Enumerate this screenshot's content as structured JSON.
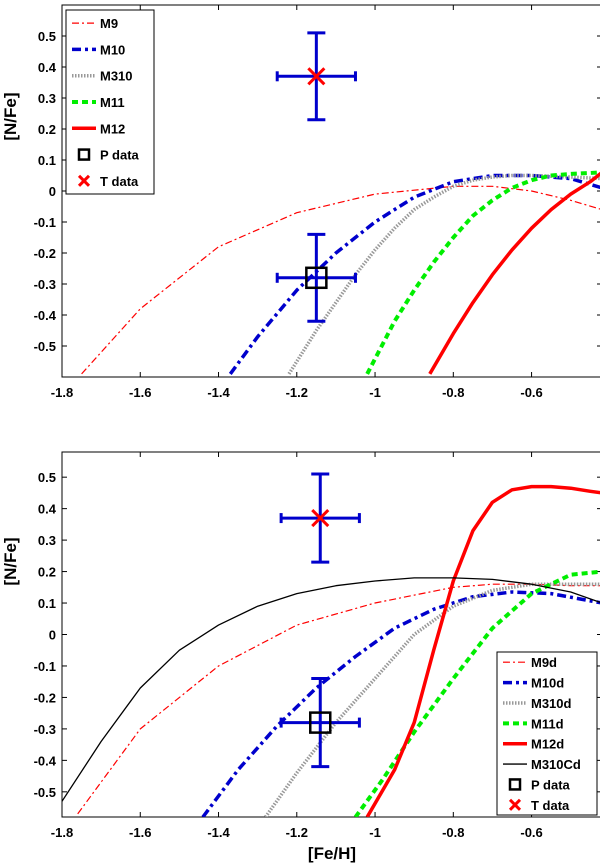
{
  "chart_data": [
    {
      "type": "line",
      "xlabel": "",
      "ylabel": "[N/Fe]",
      "xlim": [
        -1.8,
        -0.42
      ],
      "ylim": [
        -0.6,
        0.6
      ],
      "xticks": [
        "-1.8",
        "-1.6",
        "-1.4",
        "-1.2",
        "-1",
        "-0.8",
        "-0.6"
      ],
      "xtick_values": [
        -1.8,
        -1.6,
        -1.4,
        -1.2,
        -1.0,
        -0.8,
        -0.6
      ],
      "yticks": [
        "0.5",
        "0.4",
        "0.3",
        "0.2",
        "0.1",
        "0",
        "-0.1",
        "-0.2",
        "-0.3",
        "-0.4",
        "-0.5"
      ],
      "ytick_values": [
        0.5,
        0.4,
        0.3,
        0.2,
        0.1,
        0.0,
        -0.1,
        -0.2,
        -0.3,
        -0.4,
        -0.5
      ],
      "legend_position": "top-left",
      "series": [
        {
          "name": "M9",
          "color": "#ff0000",
          "style": "dashdot-thin",
          "x": [
            -1.75,
            -1.6,
            -1.4,
            -1.2,
            -1.0,
            -0.8,
            -0.7,
            -0.6,
            -0.5,
            -0.42
          ],
          "y": [
            -0.59,
            -0.38,
            -0.18,
            -0.07,
            -0.01,
            0.015,
            0.015,
            0.0,
            -0.03,
            -0.06
          ]
        },
        {
          "name": "M10",
          "color": "#0000cc",
          "style": "dashdot-thick",
          "x": [
            -1.37,
            -1.3,
            -1.2,
            -1.1,
            -1.0,
            -0.9,
            -0.8,
            -0.7,
            -0.6,
            -0.5,
            -0.42
          ],
          "y": [
            -0.59,
            -0.47,
            -0.32,
            -0.2,
            -0.1,
            -0.02,
            0.03,
            0.05,
            0.05,
            0.04,
            0.01
          ]
        },
        {
          "name": "M310",
          "color": "#999999",
          "style": "dotted",
          "x": [
            -1.22,
            -1.15,
            -1.1,
            -1.05,
            -1.0,
            -0.95,
            -0.9,
            -0.85,
            -0.8,
            -0.75,
            -0.7,
            -0.65,
            -0.6,
            -0.5,
            -0.42
          ],
          "y": [
            -0.59,
            -0.45,
            -0.36,
            -0.27,
            -0.19,
            -0.12,
            -0.06,
            -0.02,
            0.015,
            0.035,
            0.045,
            0.05,
            0.05,
            0.045,
            0.04
          ]
        },
        {
          "name": "M11",
          "color": "#00ee00",
          "style": "dashed-thick",
          "x": [
            -1.02,
            -0.95,
            -0.9,
            -0.85,
            -0.8,
            -0.75,
            -0.7,
            -0.65,
            -0.6,
            -0.55,
            -0.5,
            -0.42
          ],
          "y": [
            -0.59,
            -0.42,
            -0.32,
            -0.23,
            -0.15,
            -0.08,
            -0.03,
            0.01,
            0.035,
            0.05,
            0.055,
            0.06
          ]
        },
        {
          "name": "M12",
          "color": "#ff0000",
          "style": "solid-thick",
          "x": [
            -0.86,
            -0.8,
            -0.75,
            -0.7,
            -0.65,
            -0.6,
            -0.55,
            -0.5,
            -0.45,
            -0.42
          ],
          "y": [
            -0.59,
            -0.46,
            -0.36,
            -0.27,
            -0.19,
            -0.12,
            -0.06,
            -0.01,
            0.03,
            0.06
          ]
        }
      ],
      "data_points": [
        {
          "name": "P data",
          "marker": "square",
          "color": "#000000",
          "errbar_color": "#0000cc",
          "x": -1.15,
          "y": -0.28,
          "xerr": 0.1,
          "yerr": 0.14
        },
        {
          "name": "T data",
          "marker": "x",
          "color": "#ff0000",
          "errbar_color": "#0000cc",
          "x": -1.15,
          "y": 0.37,
          "xerr": 0.1,
          "yerr": 0.14
        }
      ]
    },
    {
      "type": "line",
      "xlabel": "[Fe/H]",
      "ylabel": "[N/Fe]",
      "xlim": [
        -1.8,
        -0.42
      ],
      "ylim": [
        -0.58,
        0.58
      ],
      "xticks": [
        "-1.8",
        "-1.6",
        "-1.4",
        "-1.2",
        "-1",
        "-0.8",
        "-0.6"
      ],
      "xtick_values": [
        -1.8,
        -1.6,
        -1.4,
        -1.2,
        -1.0,
        -0.8,
        -0.6
      ],
      "yticks": [
        "0.5",
        "0.4",
        "0.3",
        "0.2",
        "0.1",
        "0",
        "-0.1",
        "-0.2",
        "-0.3",
        "-0.4",
        "-0.5"
      ],
      "ytick_values": [
        0.5,
        0.4,
        0.3,
        0.2,
        0.1,
        0.0,
        -0.1,
        -0.2,
        -0.3,
        -0.4,
        -0.5
      ],
      "legend_position": "bottom-right",
      "series": [
        {
          "name": "M9d",
          "color": "#ff0000",
          "style": "dashdot-thin",
          "x": [
            -1.76,
            -1.6,
            -1.4,
            -1.2,
            -1.0,
            -0.8,
            -0.7,
            -0.6,
            -0.5,
            -0.42
          ],
          "y": [
            -0.57,
            -0.3,
            -0.1,
            0.03,
            0.1,
            0.15,
            0.16,
            0.16,
            0.155,
            0.155
          ]
        },
        {
          "name": "M10d",
          "color": "#0000cc",
          "style": "dashdot-thick",
          "x": [
            -1.44,
            -1.35,
            -1.25,
            -1.15,
            -1.05,
            -0.95,
            -0.85,
            -0.75,
            -0.65,
            -0.55,
            -0.42
          ],
          "y": [
            -0.58,
            -0.43,
            -0.29,
            -0.17,
            -0.07,
            0.02,
            0.08,
            0.12,
            0.135,
            0.13,
            0.1
          ]
        },
        {
          "name": "M310d",
          "color": "#999999",
          "style": "dotted",
          "x": [
            -1.28,
            -1.2,
            -1.1,
            -1.0,
            -0.9,
            -0.8,
            -0.7,
            -0.6,
            -0.5,
            -0.42
          ],
          "y": [
            -0.58,
            -0.44,
            -0.28,
            -0.14,
            0.0,
            0.09,
            0.14,
            0.16,
            0.16,
            0.16
          ]
        },
        {
          "name": "M11d",
          "color": "#00ee00",
          "style": "dashed-thick",
          "x": [
            -1.05,
            -0.98,
            -0.9,
            -0.8,
            -0.7,
            -0.6,
            -0.5,
            -0.42
          ],
          "y": [
            -0.58,
            -0.46,
            -0.31,
            -0.14,
            0.02,
            0.13,
            0.19,
            0.2
          ]
        },
        {
          "name": "M12d",
          "color": "#ff0000",
          "style": "solid-thick",
          "x": [
            -1.02,
            -0.95,
            -0.9,
            -0.85,
            -0.8,
            -0.75,
            -0.7,
            -0.65,
            -0.6,
            -0.55,
            -0.5,
            -0.45,
            -0.42
          ],
          "y": [
            -0.58,
            -0.43,
            -0.28,
            -0.05,
            0.17,
            0.33,
            0.42,
            0.46,
            0.47,
            0.47,
            0.465,
            0.455,
            0.45
          ]
        },
        {
          "name": "M310Cd",
          "color": "#000000",
          "style": "solid-thin",
          "x": [
            -1.8,
            -1.7,
            -1.6,
            -1.5,
            -1.4,
            -1.3,
            -1.2,
            -1.1,
            -1.0,
            -0.9,
            -0.8,
            -0.7,
            -0.6,
            -0.5,
            -0.42
          ],
          "y": [
            -0.53,
            -0.34,
            -0.17,
            -0.05,
            0.03,
            0.09,
            0.13,
            0.155,
            0.17,
            0.18,
            0.18,
            0.175,
            0.16,
            0.135,
            0.1
          ]
        }
      ],
      "data_points": [
        {
          "name": "P data",
          "marker": "square",
          "color": "#000000",
          "errbar_color": "#0000cc",
          "x": -1.14,
          "y": -0.28,
          "xerr": 0.1,
          "yerr": 0.14
        },
        {
          "name": "T data",
          "marker": "x",
          "color": "#ff0000",
          "errbar_color": "#0000cc",
          "x": -1.14,
          "y": 0.37,
          "xerr": 0.1,
          "yerr": 0.14
        }
      ]
    }
  ]
}
